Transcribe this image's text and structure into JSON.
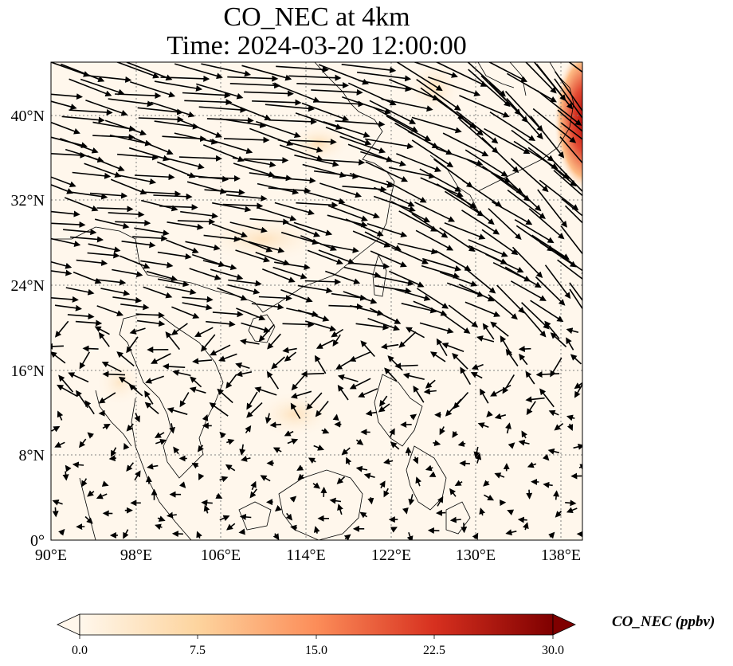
{
  "title": {
    "line1": "CO_NEC at 4km",
    "line2": "Time: 2024-03-20 12:00:00"
  },
  "map": {
    "projection": "PlateCarree",
    "lon_range": [
      90,
      140
    ],
    "lat_range": [
      0,
      45
    ],
    "gridlines": "dotted grey",
    "coastlines": true,
    "x_ticks": [
      "90°E",
      "98°E",
      "106°E",
      "114°E",
      "122°E",
      "130°E",
      "138°E"
    ],
    "y_ticks": [
      "0°",
      "8°N",
      "16°N",
      "24°N",
      "32°N",
      "40°N"
    ],
    "wind_vectors": "quiver, strongest westerly/northwesterly flow north of 20°N, weak winds south",
    "hotspots": [
      {
        "lon": 139.5,
        "lat": 40,
        "level": "high (~25-30 ppbv)",
        "note": "east edge near Japan"
      },
      {
        "lon": 116,
        "lat": 37,
        "level": "low (~3-5 ppbv)"
      },
      {
        "lon": 112,
        "lat": 29,
        "level": "low (~2-4 ppbv)"
      },
      {
        "lon": 113,
        "lat": 12,
        "level": "low (~2-4 ppbv)"
      }
    ]
  },
  "colorbar": {
    "cmap": "OrRd",
    "vmin": 0.0,
    "vmax": 30.0,
    "extend": "both",
    "ticks": [
      "0.0",
      "7.5",
      "15.0",
      "22.5",
      "30.0"
    ],
    "label": "CO_NEC (ppbv)",
    "colors": [
      "#fff7ec",
      "#fdd49e",
      "#fc8d59",
      "#d7301f",
      "#7f0000"
    ]
  }
}
